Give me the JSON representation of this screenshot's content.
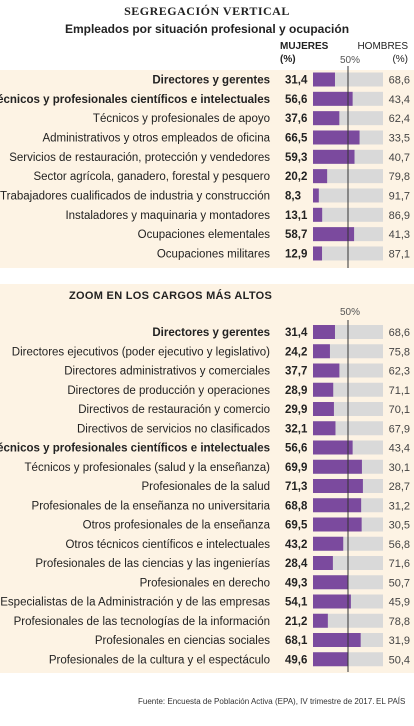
{
  "header": {
    "title": "SEGREGACIÓN VERTICAL",
    "subtitle": "Empleados por situación profesional y ocupación",
    "col_women_line1": "MUJERES",
    "col_women_line2": "(%)",
    "col_men_line1": "HOMBRES",
    "col_men_line2": "(%)",
    "midline_label_1": "50%",
    "midline_label_2": "50%"
  },
  "section2_title": "ZOOM EN LOS CARGOS MÁS ALTOS",
  "footer": {
    "source": "Fuente: Encuesta de Población Activa (EPA), IV trimestre de 2017.",
    "brand": "EL PAÍS"
  },
  "colors": {
    "women": "#7b4a9e",
    "men": "#d9d9d9",
    "panel": "#fdf3e4",
    "midline": "#333333"
  },
  "chart_data": [
    {
      "type": "bar",
      "title": "Empleados por situación profesional y ocupación",
      "stacked": true,
      "orientation": "horizontal",
      "xlim": [
        0,
        100
      ],
      "categories": [
        "Directores y gerentes",
        "Técnicos y profesionales científicos e intelectuales",
        "Técnicos y profesionales de apoyo",
        "Administrativos y otros empleados de oficina",
        "Servicios de restauración, protección y vendedores",
        "Sector agrícola, ganadero, forestal y pesquero",
        "Trabajadores cualificados de industria y construcción",
        "Instaladores y maquinaria y montadores",
        "Ocupaciones elementales",
        "Ocupaciones militares"
      ],
      "bold": [
        true,
        true,
        false,
        false,
        false,
        false,
        false,
        false,
        false,
        false
      ],
      "series": [
        {
          "name": "MUJERES (%)",
          "values": [
            "31,4",
            "56,6",
            "37,6",
            "66,5",
            "59,3",
            "20,2",
            "8,3",
            "13,1",
            "58,7",
            "12,9"
          ]
        },
        {
          "name": "HOMBRES (%)",
          "values": [
            "68,6",
            "43,4",
            "62,4",
            "33,5",
            "40,7",
            "79,8",
            "91,7",
            "86,9",
            "41,3",
            "87,1"
          ]
        }
      ]
    },
    {
      "type": "bar",
      "title": "ZOOM EN LOS CARGOS MÁS ALTOS",
      "stacked": true,
      "orientation": "horizontal",
      "xlim": [
        0,
        100
      ],
      "categories": [
        "Directores y gerentes",
        "Directores ejecutivos (poder ejecutivo y legislativo)",
        "Directores administrativos y comerciales",
        "Directores de producción y operaciones",
        "Directivos de restauración y comercio",
        "Directivos de servicios no clasificados",
        "Técnicos y profesionales científicos e intelectuales",
        "Técnicos y profesionales (salud y la enseñanza)",
        "Profesionales de la salud",
        "Profesionales de la enseñanza no universitaria",
        "Otros profesionales de la enseñanza",
        "Otros técnicos científicos e intelectuales",
        "Profesionales de las ciencias y las ingenierías",
        "Profesionales en derecho",
        "Especialistas de la Administración y de las empresas",
        "Profesionales de las tecnologías de la información",
        "Profesionales en ciencias sociales",
        "Profesionales de la cultura y el espectáculo"
      ],
      "bold": [
        true,
        false,
        false,
        false,
        false,
        false,
        true,
        false,
        false,
        false,
        false,
        false,
        false,
        false,
        false,
        false,
        false,
        false
      ],
      "series": [
        {
          "name": "MUJERES (%)",
          "values": [
            "31,4",
            "24,2",
            "37,7",
            "28,9",
            "29,9",
            "32,1",
            "56,6",
            "69,9",
            "71,3",
            "68,8",
            "69,5",
            "43,2",
            "28,4",
            "49,3",
            "54,1",
            "21,2",
            "68,1",
            "49,6"
          ]
        },
        {
          "name": "HOMBRES (%)",
          "values": [
            "68,6",
            "75,8",
            "62,3",
            "71,1",
            "70,1",
            "67,9",
            "43,4",
            "30,1",
            "28,7",
            "31,2",
            "30,5",
            "56,8",
            "71,6",
            "50,7",
            "45,9",
            "78,8",
            "31,9",
            "50,4"
          ]
        }
      ]
    }
  ]
}
